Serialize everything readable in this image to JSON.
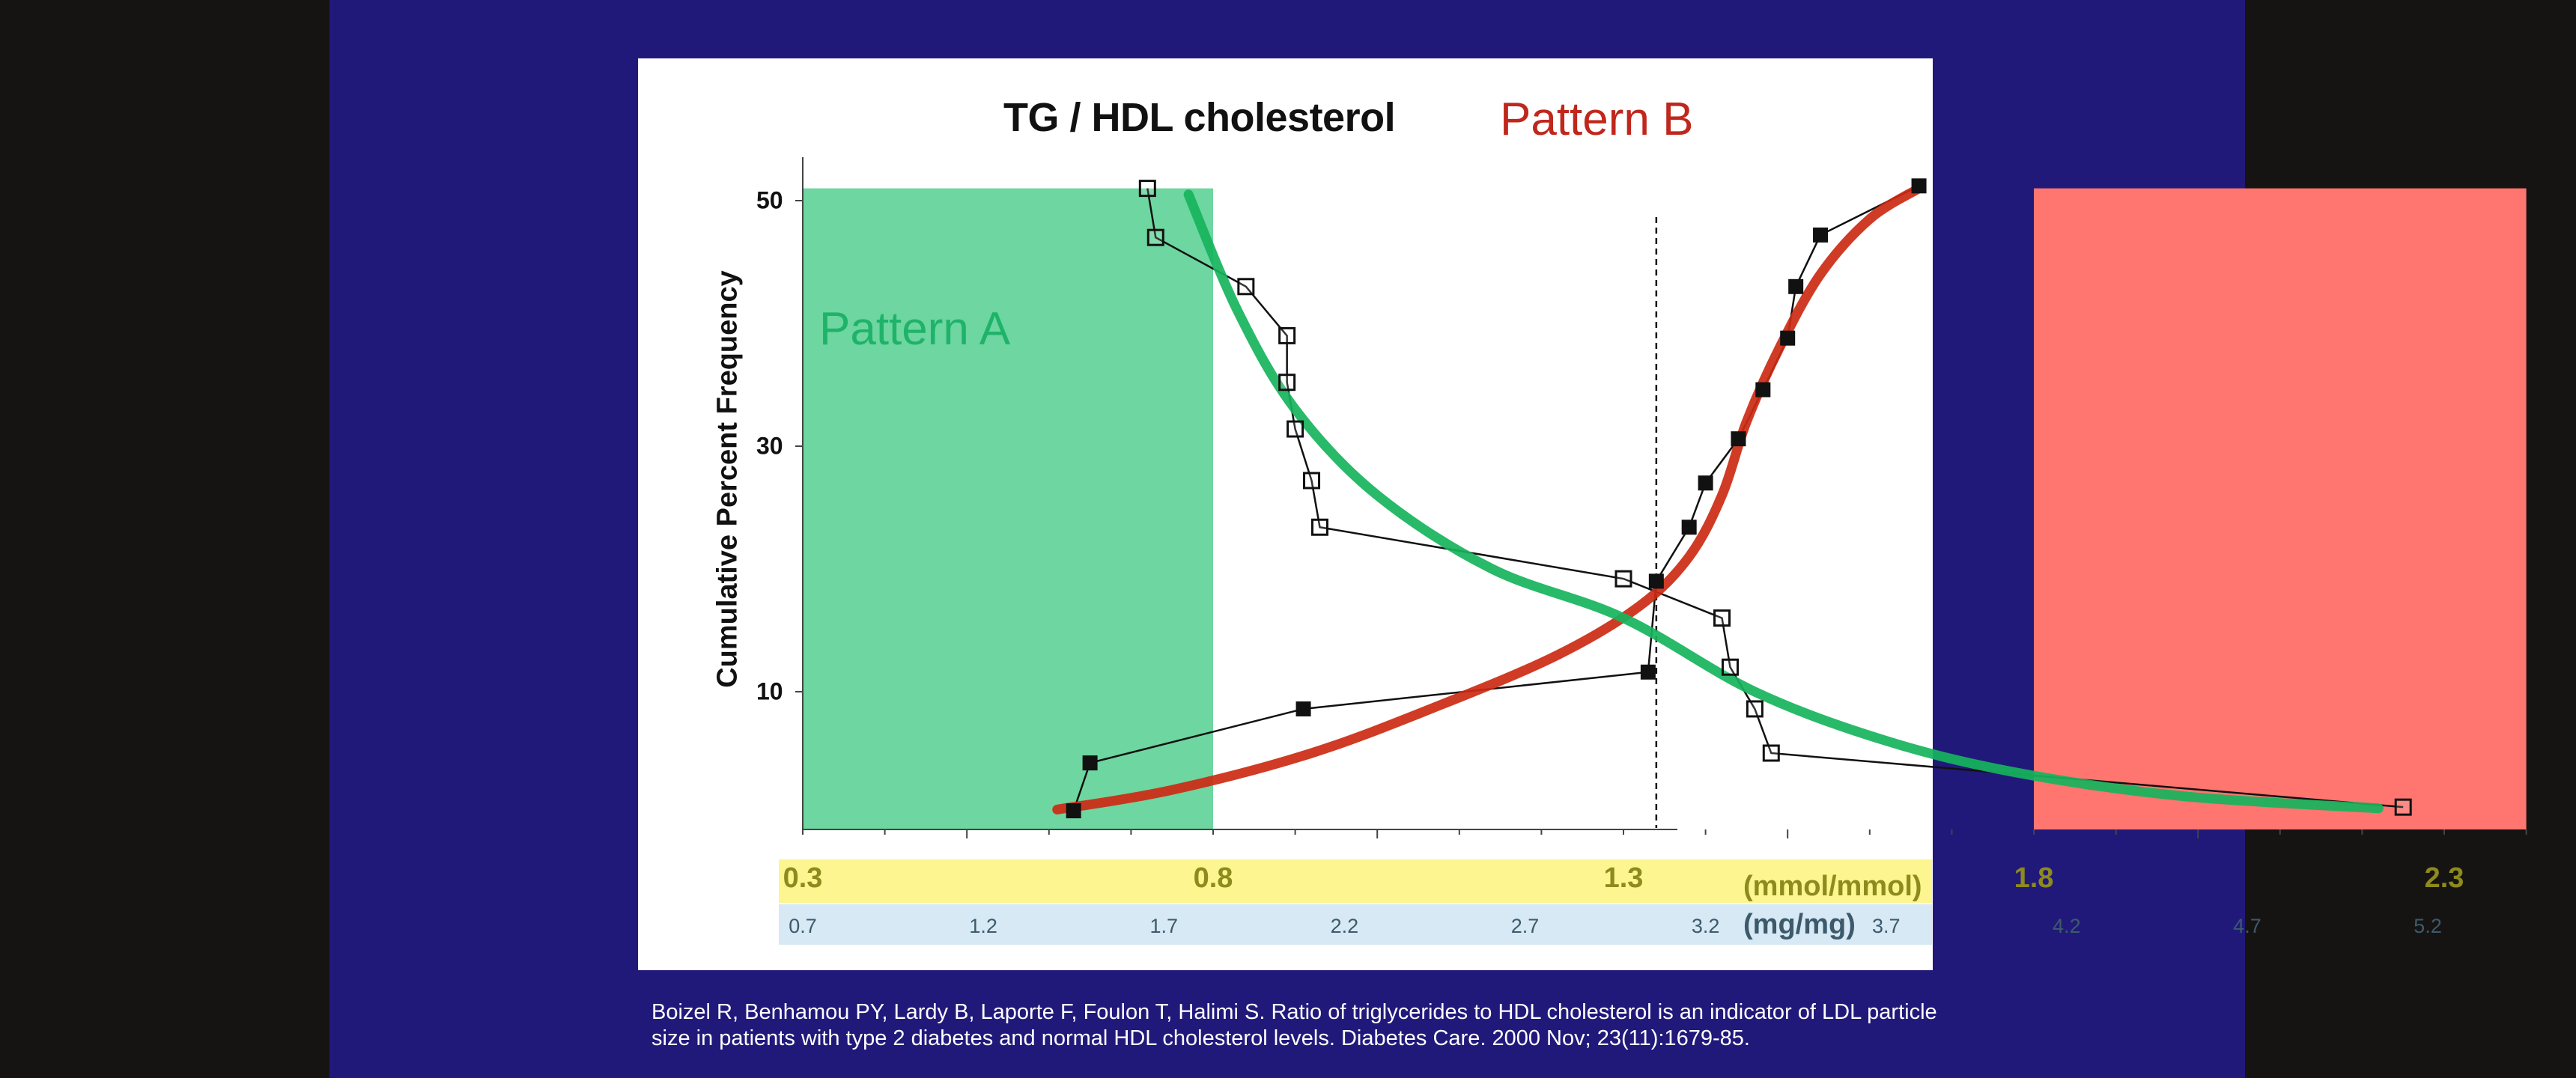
{
  "slide": {
    "citation": "Boizel R, Benhamou PY, Lardy B, Laporte F, Foulon T, Halimi S. Ratio of triglycerides to HDL cholesterol is an indicator of LDL particle size in patients with type 2 diabetes and normal HDL cholesterol levels. Diabetes Care. 2000 Nov; 23(11):1679-85."
  },
  "chart_data": {
    "type": "line",
    "title": "TG / HDL cholesterol",
    "ylabel": "Cumulative Percent Frequency",
    "y_ticks": [
      {
        "label": "50",
        "value": 50
      },
      {
        "label": "30",
        "value": 30
      },
      {
        "label": "10",
        "value": 10
      }
    ],
    "ylim": [
      0,
      52
    ],
    "xlim": [
      0.3,
      2.5
    ],
    "x_axis_mmol": {
      "unit": "(mmol/mmol)",
      "ticks": [
        {
          "label": "0.3",
          "value": 0.3
        },
        {
          "label": "0.8",
          "value": 0.8
        },
        {
          "label": "1.3",
          "value": 1.3
        },
        {
          "label": "1.8",
          "value": 1.8
        },
        {
          "label": "2.3",
          "value": 2.3
        }
      ]
    },
    "x_axis_mg": {
      "unit": "(mg/mg)",
      "ticks": [
        {
          "label": "0.7",
          "value": 0.3
        },
        {
          "label": "1.2",
          "value": 0.52
        },
        {
          "label": "1.7",
          "value": 0.74
        },
        {
          "label": "2.2",
          "value": 0.96
        },
        {
          "label": "2.7",
          "value": 1.18
        },
        {
          "label": "3.2",
          "value": 1.4
        },
        {
          "label": "3.7",
          "value": 1.62
        },
        {
          "label": "4.2",
          "value": 1.84
        },
        {
          "label": "4.7",
          "value": 2.06
        },
        {
          "label": "5.2",
          "value": 2.28
        }
      ]
    },
    "regions": [
      {
        "label": "Pattern A",
        "x_start": 0.3,
        "x_end": 0.8,
        "y_top": 51,
        "color": "#6ed6a0"
      },
      {
        "label": "Pattern B",
        "x_start": 1.8,
        "x_end": 2.4,
        "y_top": 51,
        "color": "#ff7570"
      }
    ],
    "cutoff_x": 1.34,
    "series": [
      {
        "marker": "filled-square",
        "color": "#111111",
        "points": [
          [
            0.63,
            0.3
          ],
          [
            0.65,
            4.2
          ],
          [
            0.91,
            8.6
          ],
          [
            1.33,
            11.6
          ],
          [
            1.34,
            19.0
          ],
          [
            1.38,
            23.4
          ],
          [
            1.4,
            27.0
          ],
          [
            1.44,
            30.6
          ],
          [
            1.47,
            34.6
          ],
          [
            1.5,
            38.8
          ],
          [
            1.51,
            43.0
          ],
          [
            1.54,
            47.2
          ],
          [
            1.66,
            51.2
          ]
        ]
      },
      {
        "marker": "open-square",
        "color": "#111111",
        "points": [
          [
            0.72,
            51.0
          ],
          [
            0.73,
            47.0
          ],
          [
            0.84,
            43.0
          ],
          [
            0.89,
            39.0
          ],
          [
            0.89,
            35.2
          ],
          [
            0.9,
            31.4
          ],
          [
            0.92,
            27.2
          ],
          [
            0.93,
            23.4
          ],
          [
            1.3,
            19.2
          ],
          [
            1.42,
            16.0
          ],
          [
            1.43,
            12.0
          ],
          [
            1.46,
            8.6
          ],
          [
            1.48,
            5.0
          ],
          [
            2.25,
            0.6
          ]
        ]
      }
    ],
    "fitted_curves": [
      {
        "color": "#cc2a14",
        "points": [
          [
            0.61,
            0.4
          ],
          [
            0.75,
            2.0
          ],
          [
            0.92,
            5.0
          ],
          [
            1.08,
            9.0
          ],
          [
            1.22,
            13.0
          ],
          [
            1.32,
            17.0
          ],
          [
            1.38,
            21.0
          ],
          [
            1.42,
            26.0
          ],
          [
            1.45,
            32.0
          ],
          [
            1.49,
            38.0
          ],
          [
            1.54,
            44.0
          ],
          [
            1.6,
            48.5
          ],
          [
            1.66,
            51.0
          ]
        ]
      },
      {
        "color": "#16b45c",
        "points": [
          [
            0.77,
            50.5
          ],
          [
            0.83,
            41.0
          ],
          [
            0.9,
            33.0
          ],
          [
            1.0,
            26.0
          ],
          [
            1.14,
            20.0
          ],
          [
            1.3,
            16.0
          ],
          [
            1.46,
            10.0
          ],
          [
            1.62,
            6.0
          ],
          [
            1.78,
            3.4
          ],
          [
            1.98,
            1.5
          ],
          [
            2.22,
            0.5
          ]
        ]
      }
    ]
  }
}
